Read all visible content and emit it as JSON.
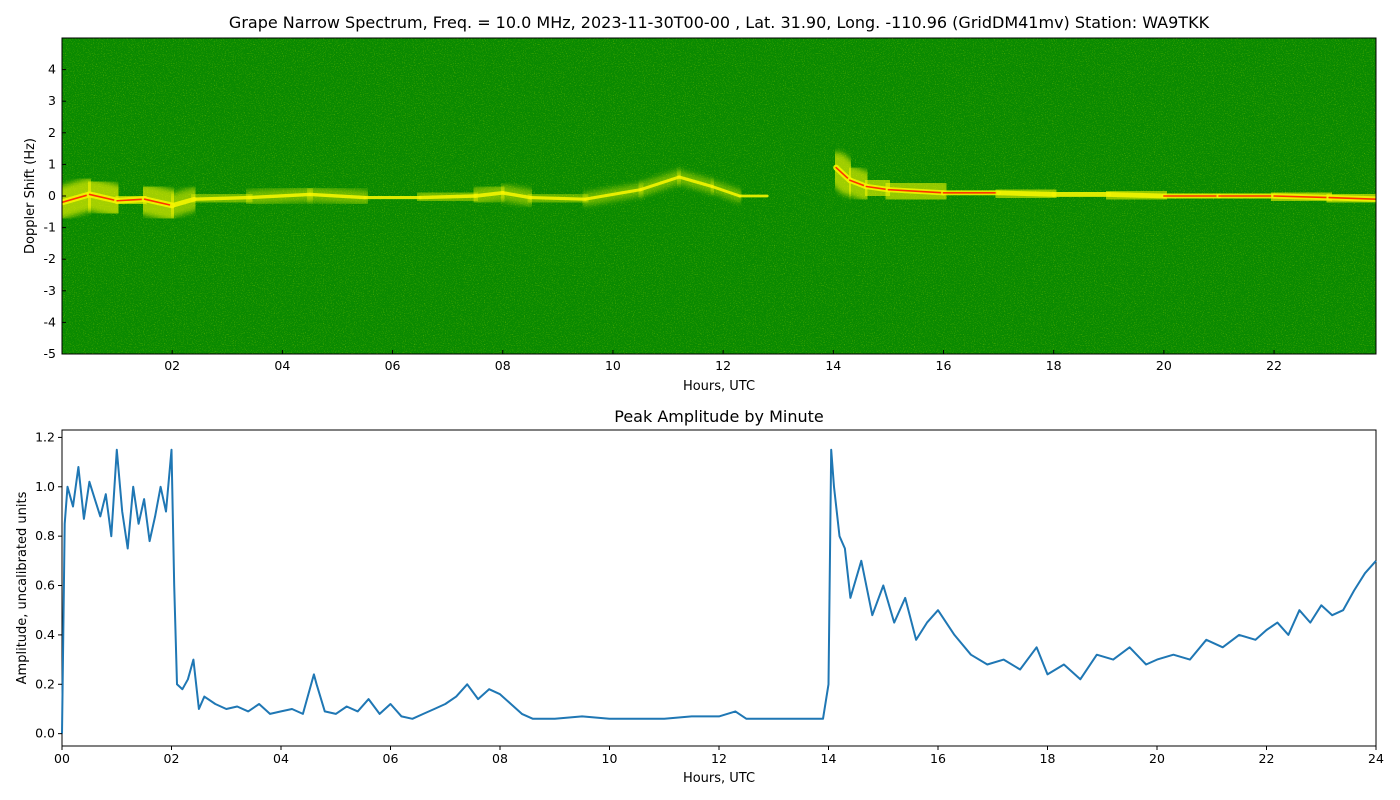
{
  "chart_data": [
    {
      "type": "heatmap",
      "title": "Grape Narrow Spectrum, Freq. = 10.0 MHz, 2023-11-30T00-00 , Lat.  31.90, Long. -110.96 (GridDM41mv) Station: WA9TKK",
      "xlabel": "Hours, UTC",
      "ylabel": "Doppler Shift (Hz)",
      "xlim": [
        0,
        23.85
      ],
      "ylim": [
        -5,
        5
      ],
      "xticks": [
        "02",
        "04",
        "06",
        "08",
        "10",
        "12",
        "14",
        "16",
        "18",
        "20",
        "22"
      ],
      "xtick_values": [
        2,
        4,
        6,
        8,
        10,
        12,
        14,
        16,
        18,
        20,
        22
      ],
      "yticks": [
        "-5",
        "-4",
        "-3",
        "-2",
        "-1",
        "0",
        "1",
        "2",
        "3",
        "4"
      ],
      "ytick_values": [
        -5,
        -4,
        -3,
        -2,
        -1,
        0,
        1,
        2,
        3,
        4
      ],
      "colors": {
        "background": "#0a8a00",
        "mid": "#f5f500",
        "peak": "#ff3300"
      },
      "trace": {
        "hours": [
          0,
          0.5,
          1.0,
          1.5,
          2.0,
          2.4,
          3.4,
          4.5,
          5.5,
          6.5,
          7.5,
          8.0,
          8.5,
          9.5,
          10.5,
          11.2,
          11.8,
          12.3,
          12.8,
          13.9,
          14.05,
          14.3,
          14.6,
          15,
          16,
          17,
          18,
          19,
          20,
          21,
          22,
          23,
          23.85
        ],
        "doppler_hz": [
          -0.2,
          0.05,
          -0.15,
          -0.1,
          -0.3,
          -0.1,
          -0.05,
          0.05,
          -0.05,
          -0.05,
          0.0,
          0.1,
          -0.05,
          -0.1,
          0.2,
          0.6,
          0.3,
          0.0,
          0.0,
          null,
          0.9,
          0.5,
          0.3,
          0.2,
          0.1,
          0.1,
          0.05,
          0.05,
          0.0,
          0.0,
          0.0,
          -0.05,
          -0.1
        ],
        "intensity": [
          1.0,
          1.0,
          1.0,
          1.0,
          0.9,
          0.4,
          0.3,
          0.35,
          0.3,
          0.3,
          0.4,
          0.45,
          0.3,
          0.25,
          0.25,
          0.3,
          0.25,
          0.2,
          0.15,
          0,
          1.0,
          0.9,
          0.85,
          0.8,
          0.75,
          0.7,
          0.7,
          0.7,
          0.7,
          0.75,
          0.8,
          0.85,
          0.9
        ]
      }
    },
    {
      "type": "line",
      "title": "Peak Amplitude by Minute",
      "xlabel": "Hours, UTC",
      "ylabel": "Amplitude, uncalibrated units",
      "xlim": [
        0,
        24
      ],
      "ylim": [
        -0.05,
        1.23
      ],
      "xticks": [
        "00",
        "02",
        "04",
        "06",
        "08",
        "10",
        "12",
        "14",
        "16",
        "18",
        "20",
        "22",
        "24"
      ],
      "xtick_values": [
        0,
        2,
        4,
        6,
        8,
        10,
        12,
        14,
        16,
        18,
        20,
        22,
        24
      ],
      "yticks": [
        "0.0",
        "0.2",
        "0.4",
        "0.6",
        "0.8",
        "1.0",
        "1.2"
      ],
      "ytick_values": [
        0.0,
        0.2,
        0.4,
        0.6,
        0.8,
        1.0,
        1.2
      ],
      "line_color": "#1f77b4",
      "x": [
        0,
        0.05,
        0.1,
        0.2,
        0.3,
        0.4,
        0.5,
        0.6,
        0.7,
        0.8,
        0.9,
        1.0,
        1.1,
        1.2,
        1.3,
        1.4,
        1.5,
        1.6,
        1.7,
        1.8,
        1.9,
        2.0,
        2.05,
        2.1,
        2.2,
        2.3,
        2.4,
        2.5,
        2.6,
        2.8,
        3.0,
        3.2,
        3.4,
        3.6,
        3.8,
        4.0,
        4.2,
        4.4,
        4.6,
        4.65,
        4.8,
        5.0,
        5.2,
        5.4,
        5.6,
        5.8,
        6.0,
        6.2,
        6.4,
        6.6,
        6.8,
        7.0,
        7.2,
        7.4,
        7.6,
        7.8,
        8.0,
        8.2,
        8.4,
        8.6,
        9.0,
        9.5,
        10.0,
        10.5,
        11.0,
        11.5,
        12.0,
        12.3,
        12.5,
        13.0,
        13.5,
        13.9,
        14.0,
        14.05,
        14.1,
        14.2,
        14.3,
        14.4,
        14.6,
        14.8,
        15.0,
        15.2,
        15.4,
        15.6,
        15.8,
        16.0,
        16.3,
        16.6,
        16.9,
        17.2,
        17.5,
        17.8,
        18.0,
        18.3,
        18.6,
        18.9,
        19.2,
        19.5,
        19.8,
        20.0,
        20.3,
        20.6,
        20.9,
        21.2,
        21.5,
        21.8,
        22.0,
        22.2,
        22.4,
        22.6,
        22.8,
        23.0,
        23.2,
        23.4,
        23.6,
        23.8,
        24.0
      ],
      "y": [
        0.0,
        0.85,
        1.0,
        0.92,
        1.08,
        0.87,
        1.02,
        0.95,
        0.88,
        0.97,
        0.8,
        1.15,
        0.9,
        0.75,
        1.0,
        0.85,
        0.95,
        0.78,
        0.88,
        1.0,
        0.9,
        1.15,
        0.6,
        0.2,
        0.18,
        0.22,
        0.3,
        0.1,
        0.15,
        0.12,
        0.1,
        0.11,
        0.09,
        0.12,
        0.08,
        0.09,
        0.1,
        0.08,
        0.24,
        0.2,
        0.09,
        0.08,
        0.11,
        0.09,
        0.14,
        0.08,
        0.12,
        0.07,
        0.06,
        0.08,
        0.1,
        0.12,
        0.15,
        0.2,
        0.14,
        0.18,
        0.16,
        0.12,
        0.08,
        0.06,
        0.06,
        0.07,
        0.06,
        0.06,
        0.06,
        0.07,
        0.07,
        0.09,
        0.06,
        0.06,
        0.06,
        0.06,
        0.2,
        1.15,
        1.0,
        0.8,
        0.75,
        0.55,
        0.7,
        0.48,
        0.6,
        0.45,
        0.55,
        0.38,
        0.45,
        0.5,
        0.4,
        0.32,
        0.28,
        0.3,
        0.26,
        0.35,
        0.24,
        0.28,
        0.22,
        0.32,
        0.3,
        0.35,
        0.28,
        0.3,
        0.32,
        0.3,
        0.38,
        0.35,
        0.4,
        0.38,
        0.42,
        0.45,
        0.4,
        0.5,
        0.45,
        0.52,
        0.48,
        0.5,
        0.58,
        0.65,
        0.7
      ]
    }
  ]
}
